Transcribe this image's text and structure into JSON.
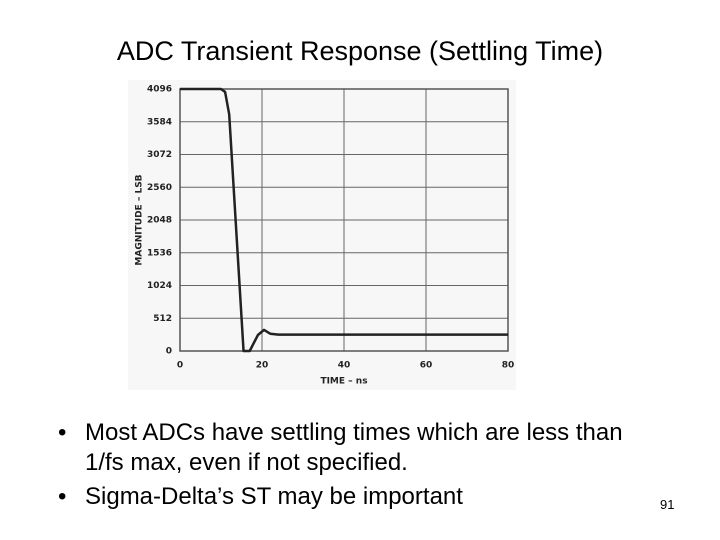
{
  "slide": {
    "title": "ADC Transient Response (Settling Time)",
    "bullets": [
      "Most ADCs have settling times which are less than 1/fs max, even if not specified.",
      "Sigma-Delta’s ST may be important"
    ],
    "page_number": "91"
  },
  "chart_data": {
    "type": "line",
    "x_label": "TIME – ns",
    "y_label": "MAGNITUDE – LSB",
    "x": [
      0,
      10,
      11,
      12,
      15.5,
      17,
      19,
      20.5,
      22,
      24,
      80
    ],
    "values": [
      4096,
      4096,
      4050,
      3700,
      0,
      0,
      250,
      330,
      270,
      256,
      256
    ],
    "color": "#222222",
    "xlim": [
      0,
      80
    ],
    "xticks": [
      0,
      20,
      40,
      60,
      80
    ],
    "ylim": [
      0,
      4096
    ],
    "yticks": [
      0,
      512,
      1024,
      1536,
      2048,
      2560,
      3072,
      3584,
      4096
    ],
    "grid": true
  }
}
